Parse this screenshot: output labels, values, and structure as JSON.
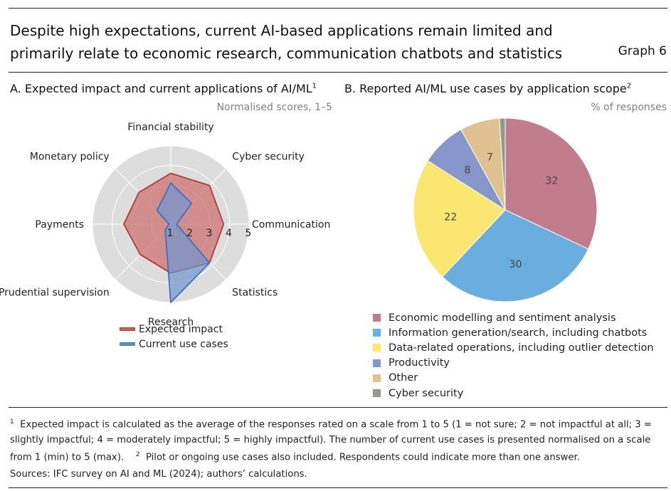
{
  "title_line1": "Despite high expectations, current AI-based applications remain limited and",
  "title_line2": "primarily relate to economic research, communication chatbots and statistics",
  "graph_label": "Graph 6",
  "footnote_1_marker": "1",
  "footnote_1_text": "Expected impact is calculated as the average of the responses rated on a scale from 1 to 5 (1 = not sure; 2 = not impactful at all; 3 = slightly impactful; 4 = moderately impactful; 5 = highly impactful). The number of current use cases is presented normalised on a scale from 1 (min) to 5 (max).",
  "footnote_2_marker": "2",
  "footnote_2_text": "Pilot or ongoing use cases also included. Respondents could indicate more than one answer.",
  "sources": "Sources: IFC survey on AI and ML (2024); authors’ calculations.",
  "chart_data": [
    {
      "type": "radar",
      "title": "A. Expected impact and current applications of AI/ML",
      "title_footnote": "1",
      "unit_label": "Normalised scores, 1–5",
      "axes": [
        "Financial stability",
        "Cyber security",
        "Communication",
        "Statistics",
        "Research",
        "Prudential supervision",
        "Payments",
        "Monetary policy"
      ],
      "tick_labels": [
        "1",
        "2",
        "3",
        "4",
        "5"
      ],
      "range": [
        1,
        5
      ],
      "series": [
        {
          "name": "Expected impact",
          "values": [
            3.6,
            3.8,
            3.7,
            3.8,
            3.5,
            3.2,
            3.4,
            3.3
          ],
          "color": "#b03a3a",
          "fill": "#cc7070"
        },
        {
          "name": "Current use cases",
          "values": [
            3.1,
            2.5,
            1.3,
            3.8,
            5.0,
            1.4,
            1.1,
            2.0
          ],
          "color": "#3f6fbf",
          "fill": "#6f96d0"
        }
      ],
      "grid_color": "#dddddd"
    },
    {
      "type": "pie",
      "title": "B. Reported AI/ML use cases by application scope",
      "title_footnote": "2",
      "unit_label": "% of responses",
      "slices": [
        {
          "label": "Economic modelling and sentiment analysis",
          "value": 32,
          "color": "#c17d8d",
          "show_label": true
        },
        {
          "label": "Information generation/search, including chatbots",
          "value": 30,
          "color": "#6aaee0",
          "show_label": true
        },
        {
          "label": "Data-related operations, including outlier detection",
          "value": 22,
          "color": "#fbe672",
          "show_label": true
        },
        {
          "label": "Productivity",
          "value": 8,
          "color": "#8797cc",
          "show_label": true
        },
        {
          "label": "Other",
          "value": 7,
          "color": "#e0c190",
          "show_label": true
        },
        {
          "label": "Cyber security",
          "value": 1,
          "color": "#8f9a8c",
          "show_label": false
        }
      ]
    }
  ]
}
